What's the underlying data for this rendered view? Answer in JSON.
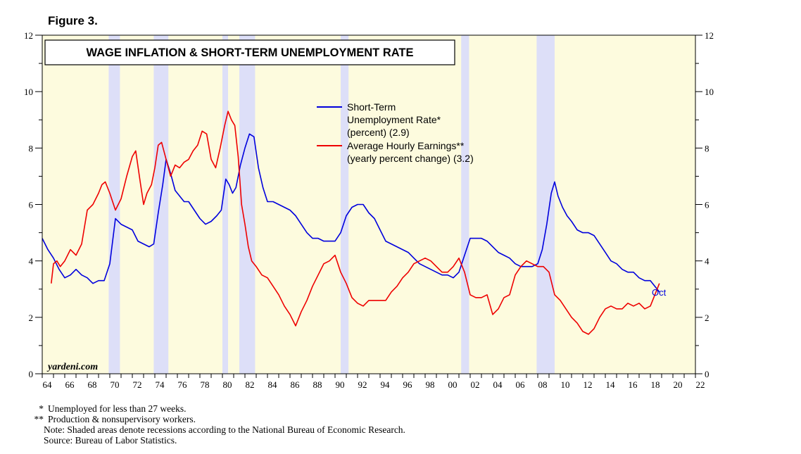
{
  "figure_label": "Figure 3.",
  "footnotes": [
    {
      "marker": "*",
      "text": "Unemployed for less than 27 weeks."
    },
    {
      "marker": "**",
      "text": "Production & nonsupervisory workers."
    },
    {
      "marker": "",
      "text": "Note: Shaded areas denote recessions according to the National Bureau of Economic Research."
    },
    {
      "marker": "",
      "text": "Source: Bureau of Labor Statistics."
    }
  ],
  "colors": {
    "background": "#fdfbde",
    "recession": "#dddff8",
    "short_term_unemployment": "#0000dd",
    "wage_inflation": "#ee0000",
    "axis": "#000000"
  },
  "chart_data": {
    "type": "line",
    "title": "WAGE INFLATION & SHORT-TERM UNEMPLOYMENT RATE",
    "watermark": "yardeni.com",
    "end_label": "Oct",
    "xlim": [
      1964,
      2022
    ],
    "ylim": [
      0,
      12
    ],
    "y_ticks": [
      0,
      2,
      4,
      6,
      8,
      10,
      12
    ],
    "y_tick_labels": [
      "0",
      "2",
      "4",
      "6",
      "8",
      "10",
      "12"
    ],
    "x_ticks": [
      1964,
      1966,
      1968,
      1970,
      1972,
      1974,
      1976,
      1978,
      1980,
      1982,
      1984,
      1986,
      1988,
      1990,
      1992,
      1994,
      1996,
      1998,
      2000,
      2002,
      2004,
      2006,
      2008,
      2010,
      2012,
      2014,
      2016,
      2018,
      2020,
      2022
    ],
    "x_tick_labels": [
      "64",
      "66",
      "68",
      "70",
      "72",
      "74",
      "76",
      "78",
      "80",
      "82",
      "84",
      "86",
      "88",
      "90",
      "92",
      "94",
      "96",
      "98",
      "00",
      "02",
      "04",
      "06",
      "08",
      "10",
      "12",
      "14",
      "16",
      "18",
      "20",
      "22"
    ],
    "recessions": [
      [
        1969.9,
        1970.9
      ],
      [
        1973.9,
        1975.2
      ],
      [
        1980.0,
        1980.5
      ],
      [
        1981.5,
        1982.9
      ],
      [
        1990.5,
        1991.2
      ],
      [
        2001.2,
        2001.9
      ],
      [
        2007.9,
        2009.5
      ]
    ],
    "legend": [
      {
        "label": "Short-Term Unemployment Rate* (percent) (2.9)",
        "lines": [
          "Short-Term",
          "Unemployment Rate*",
          "(percent) (2.9)"
        ]
      },
      {
        "label": "Average Hourly Earnings** (yearly percent change) (3.2)",
        "lines": [
          "Average Hourly Earnings**",
          "(yearly percent change) (3.2)"
        ]
      }
    ],
    "series": [
      {
        "name": "Short-Term Unemployment Rate* (percent) (2.9)",
        "x": [
          1964.0,
          1964.5,
          1965.0,
          1965.5,
          1966.0,
          1966.5,
          1967.0,
          1967.5,
          1968.0,
          1968.5,
          1969.0,
          1969.5,
          1970.0,
          1970.5,
          1971.0,
          1971.5,
          1972.0,
          1972.5,
          1973.0,
          1973.5,
          1973.9,
          1974.3,
          1974.7,
          1975.0,
          1975.4,
          1975.8,
          1976.2,
          1976.6,
          1977.0,
          1977.5,
          1978.0,
          1978.5,
          1979.0,
          1979.5,
          1979.9,
          1980.3,
          1980.6,
          1980.9,
          1981.2,
          1981.6,
          1982.0,
          1982.4,
          1982.8,
          1983.2,
          1983.6,
          1984.0,
          1984.5,
          1985.0,
          1985.5,
          1986.0,
          1986.5,
          1987.0,
          1987.5,
          1988.0,
          1988.5,
          1989.0,
          1989.5,
          1990.0,
          1990.5,
          1991.0,
          1991.5,
          1992.0,
          1992.5,
          1993.0,
          1993.5,
          1994.0,
          1994.5,
          1995.0,
          1995.5,
          1996.0,
          1996.5,
          1997.0,
          1997.5,
          1998.0,
          1998.5,
          1999.0,
          1999.5,
          2000.0,
          2000.5,
          2001.0,
          2001.5,
          2002.0,
          2002.5,
          2003.0,
          2003.5,
          2004.0,
          2004.5,
          2005.0,
          2005.5,
          2006.0,
          2006.5,
          2007.0,
          2007.5,
          2008.0,
          2008.4,
          2008.8,
          2009.2,
          2009.5,
          2009.8,
          2010.2,
          2010.6,
          2011.0,
          2011.5,
          2012.0,
          2012.5,
          2013.0,
          2013.5,
          2014.0,
          2014.5,
          2015.0,
          2015.5,
          2016.0,
          2016.5,
          2017.0,
          2017.5,
          2018.0,
          2018.4,
          2018.8
        ],
        "values": [
          4.8,
          4.4,
          4.1,
          3.7,
          3.4,
          3.5,
          3.7,
          3.5,
          3.4,
          3.2,
          3.3,
          3.3,
          3.9,
          5.5,
          5.3,
          5.2,
          5.1,
          4.7,
          4.6,
          4.5,
          4.6,
          5.7,
          6.7,
          7.6,
          7.1,
          6.5,
          6.3,
          6.1,
          6.1,
          5.8,
          5.5,
          5.3,
          5.4,
          5.6,
          5.8,
          6.9,
          6.7,
          6.4,
          6.6,
          7.4,
          8.0,
          8.5,
          8.4,
          7.3,
          6.6,
          6.1,
          6.1,
          6.0,
          5.9,
          5.8,
          5.6,
          5.3,
          5.0,
          4.8,
          4.8,
          4.7,
          4.7,
          4.7,
          5.0,
          5.6,
          5.9,
          6.0,
          6.0,
          5.7,
          5.5,
          5.1,
          4.7,
          4.6,
          4.5,
          4.4,
          4.3,
          4.1,
          3.9,
          3.8,
          3.7,
          3.6,
          3.5,
          3.5,
          3.4,
          3.6,
          4.2,
          4.8,
          4.8,
          4.8,
          4.7,
          4.5,
          4.3,
          4.2,
          4.1,
          3.9,
          3.8,
          3.8,
          3.8,
          3.9,
          4.4,
          5.3,
          6.4,
          6.8,
          6.3,
          5.9,
          5.6,
          5.4,
          5.1,
          5.0,
          5.0,
          4.9,
          4.6,
          4.3,
          4.0,
          3.9,
          3.7,
          3.6,
          3.6,
          3.4,
          3.3,
          3.3,
          3.1,
          2.9
        ]
      },
      {
        "name": "Average Hourly Earnings** (yearly percent change) (3.2)",
        "x": [
          1964.8,
          1965.0,
          1965.3,
          1965.6,
          1966.0,
          1966.5,
          1967.0,
          1967.5,
          1968.0,
          1968.5,
          1969.0,
          1969.3,
          1969.6,
          1970.0,
          1970.5,
          1971.0,
          1971.5,
          1972.0,
          1972.3,
          1972.7,
          1973.0,
          1973.3,
          1973.7,
          1974.0,
          1974.3,
          1974.6,
          1975.0,
          1975.4,
          1975.8,
          1976.2,
          1976.6,
          1977.0,
          1977.4,
          1977.8,
          1978.2,
          1978.6,
          1979.0,
          1979.4,
          1979.8,
          1980.2,
          1980.5,
          1980.8,
          1981.1,
          1981.4,
          1981.7,
          1982.0,
          1982.3,
          1982.6,
          1983.0,
          1983.5,
          1984.0,
          1984.5,
          1985.0,
          1985.5,
          1986.0,
          1986.5,
          1987.0,
          1987.5,
          1988.0,
          1988.5,
          1989.0,
          1989.5,
          1990.0,
          1990.5,
          1991.0,
          1991.5,
          1992.0,
          1992.5,
          1993.0,
          1993.5,
          1994.0,
          1994.5,
          1995.0,
          1995.5,
          1996.0,
          1996.5,
          1997.0,
          1997.5,
          1998.0,
          1998.5,
          1999.0,
          1999.5,
          2000.0,
          2000.5,
          2001.0,
          2001.5,
          2002.0,
          2002.5,
          2003.0,
          2003.5,
          2004.0,
          2004.5,
          2005.0,
          2005.5,
          2006.0,
          2006.5,
          2007.0,
          2007.5,
          2008.0,
          2008.5,
          2009.0,
          2009.5,
          2010.0,
          2010.5,
          2011.0,
          2011.5,
          2012.0,
          2012.5,
          2013.0,
          2013.5,
          2014.0,
          2014.5,
          2015.0,
          2015.5,
          2016.0,
          2016.5,
          2017.0,
          2017.5,
          2018.0,
          2018.4,
          2018.8
        ],
        "values": [
          3.2,
          3.9,
          4.0,
          3.8,
          4.0,
          4.4,
          4.2,
          4.6,
          5.8,
          6.0,
          6.4,
          6.7,
          6.8,
          6.4,
          5.8,
          6.2,
          7.0,
          7.7,
          7.9,
          6.8,
          6.0,
          6.4,
          6.7,
          7.3,
          8.1,
          8.2,
          7.6,
          7.0,
          7.4,
          7.3,
          7.5,
          7.6,
          7.9,
          8.1,
          8.6,
          8.5,
          7.6,
          7.3,
          8.0,
          8.8,
          9.3,
          9.0,
          8.8,
          7.7,
          6.0,
          5.3,
          4.5,
          4.0,
          3.8,
          3.5,
          3.4,
          3.1,
          2.8,
          2.4,
          2.1,
          1.7,
          2.2,
          2.6,
          3.1,
          3.5,
          3.9,
          4.0,
          4.2,
          3.6,
          3.2,
          2.7,
          2.5,
          2.4,
          2.6,
          2.6,
          2.6,
          2.6,
          2.9,
          3.1,
          3.4,
          3.6,
          3.9,
          4.0,
          4.1,
          4.0,
          3.8,
          3.6,
          3.6,
          3.8,
          4.1,
          3.6,
          2.8,
          2.7,
          2.7,
          2.8,
          2.1,
          2.3,
          2.7,
          2.8,
          3.5,
          3.8,
          4.0,
          3.9,
          3.8,
          3.8,
          3.6,
          2.8,
          2.6,
          2.3,
          2.0,
          1.8,
          1.5,
          1.4,
          1.6,
          2.0,
          2.3,
          2.4,
          2.3,
          2.3,
          2.5,
          2.4,
          2.5,
          2.3,
          2.4,
          2.8,
          3.2
        ]
      }
    ]
  }
}
